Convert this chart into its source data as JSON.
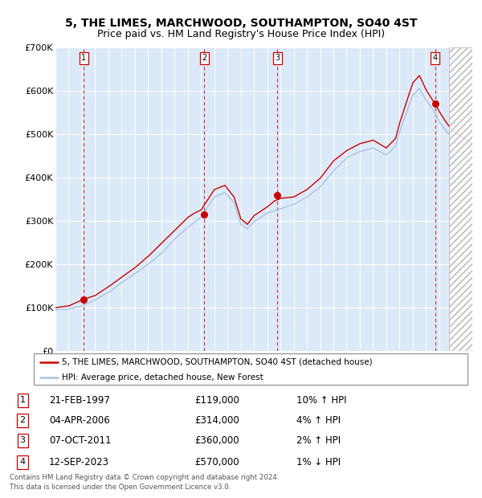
{
  "title": "5, THE LIMES, MARCHWOOD, SOUTHAMPTON, SO40 4ST",
  "subtitle": "Price paid vs. HM Land Registry's House Price Index (HPI)",
  "title_fontsize": 10,
  "subtitle_fontsize": 9,
  "ylim": [
    0,
    700000
  ],
  "yticks": [
    0,
    100000,
    200000,
    300000,
    400000,
    500000,
    600000,
    700000
  ],
  "ytick_labels": [
    "£0",
    "£100K",
    "£200K",
    "£300K",
    "£400K",
    "£500K",
    "£600K",
    "£700K"
  ],
  "plot_bg_color": "#dce9f8",
  "hpi_line_color": "#a8c4e0",
  "price_line_color": "#cc0000",
  "dot_color": "#cc0000",
  "vline_color": "#cc0000",
  "grid_color": "#ffffff",
  "transactions": [
    {
      "label": "1",
      "date_num": 1997.13,
      "price": 119000
    },
    {
      "label": "2",
      "date_num": 2006.25,
      "price": 314000
    },
    {
      "label": "3",
      "date_num": 2011.77,
      "price": 360000
    },
    {
      "label": "4",
      "date_num": 2023.7,
      "price": 570000
    }
  ],
  "transaction_details": [
    {
      "num": "1",
      "date": "21-FEB-1997",
      "price": "£119,000",
      "hpi": "10% ↑ HPI"
    },
    {
      "num": "2",
      "date": "04-APR-2006",
      "price": "£314,000",
      "hpi": "4% ↑ HPI"
    },
    {
      "num": "3",
      "date": "07-OCT-2011",
      "price": "£360,000",
      "hpi": "2% ↑ HPI"
    },
    {
      "num": "4",
      "date": "12-SEP-2023",
      "price": "£570,000",
      "hpi": "1% ↓ HPI"
    }
  ],
  "legend_entries": [
    "5, THE LIMES, MARCHWOOD, SOUTHAMPTON, SO40 4ST (detached house)",
    "HPI: Average price, detached house, New Forest"
  ],
  "footer": "Contains HM Land Registry data © Crown copyright and database right 2024.\nThis data is licensed under the Open Government Licence v3.0.",
  "xmin": 1995.0,
  "xmax": 2026.5,
  "hatch_start": 2024.75,
  "hpi_waypoints_t": [
    1995.0,
    1996.0,
    1997.0,
    1998.0,
    1999.0,
    2000.0,
    2001.0,
    2002.0,
    2003.0,
    2004.0,
    2005.0,
    2006.0,
    2007.0,
    2007.8,
    2008.5,
    2009.0,
    2009.5,
    2010.0,
    2011.0,
    2012.0,
    2013.0,
    2014.0,
    2015.0,
    2016.0,
    2017.0,
    2018.0,
    2019.0,
    2020.0,
    2020.7,
    2021.0,
    2021.5,
    2022.0,
    2022.5,
    2023.0,
    2023.5,
    2023.8,
    2024.0,
    2024.5,
    2025.0,
    2026.0,
    2026.5
  ],
  "hpi_waypoints_v": [
    95000,
    97000,
    104000,
    118000,
    135000,
    158000,
    178000,
    200000,
    225000,
    258000,
    285000,
    308000,
    355000,
    365000,
    342000,
    292000,
    282000,
    298000,
    318000,
    328000,
    338000,
    355000,
    378000,
    415000,
    445000,
    460000,
    468000,
    452000,
    472000,
    505000,
    548000,
    590000,
    605000,
    578000,
    558000,
    542000,
    528000,
    508000,
    490000,
    472000,
    465000
  ],
  "price_waypoints_t": [
    1995.0,
    1996.0,
    1997.0,
    1998.0,
    1999.0,
    2000.0,
    2001.0,
    2002.0,
    2003.0,
    2004.0,
    2005.0,
    2005.5,
    2006.0,
    2007.0,
    2007.8,
    2008.5,
    2009.0,
    2009.5,
    2010.0,
    2011.0,
    2011.5,
    2012.0,
    2013.0,
    2014.0,
    2015.0,
    2016.0,
    2017.0,
    2018.0,
    2019.0,
    2020.0,
    2020.7,
    2021.0,
    2021.5,
    2022.0,
    2022.5,
    2023.0,
    2023.5,
    2023.7,
    2024.0,
    2024.5,
    2025.0,
    2026.0,
    2026.5
  ],
  "price_waypoints_v": [
    100000,
    104000,
    118000,
    128000,
    148000,
    170000,
    192000,
    218000,
    248000,
    278000,
    308000,
    318000,
    325000,
    372000,
    382000,
    355000,
    305000,
    292000,
    312000,
    332000,
    345000,
    352000,
    355000,
    372000,
    398000,
    438000,
    462000,
    478000,
    486000,
    468000,
    490000,
    525000,
    572000,
    618000,
    635000,
    602000,
    578000,
    570000,
    552000,
    528000,
    508000,
    488000,
    478000
  ]
}
